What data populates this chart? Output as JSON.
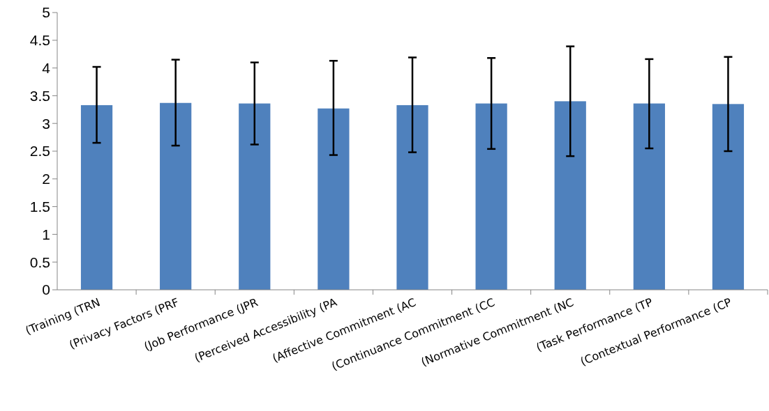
{
  "chart_data": {
    "type": "bar",
    "categories": [
      "(Training (TRN",
      "(Privacy Factors (PRF",
      "(Job Performance (JPR",
      "(Perceived Accessibility (PA",
      "(Affective Commitment (AC",
      "(Continuance Commitment (CC",
      "(Normative Commitment (NC",
      "(Task Performance (TP",
      "(Contextual Performance (CP"
    ],
    "values": [
      3.33,
      3.37,
      3.36,
      3.27,
      3.33,
      3.36,
      3.4,
      3.36,
      3.35
    ],
    "errors": [
      [
        2.65,
        4.02
      ],
      [
        2.6,
        4.15
      ],
      [
        2.62,
        4.1
      ],
      [
        2.43,
        4.13
      ],
      [
        2.48,
        4.19
      ],
      [
        2.54,
        4.18
      ],
      [
        2.41,
        4.39
      ],
      [
        2.55,
        4.16
      ],
      [
        2.5,
        4.2
      ]
    ],
    "color": "#4f81bd",
    "ylim": [
      0,
      5
    ],
    "yticks": [
      0,
      0.5,
      1,
      1.5,
      2,
      2.5,
      3,
      3.5,
      4,
      4.5,
      5
    ],
    "grid": false
  }
}
